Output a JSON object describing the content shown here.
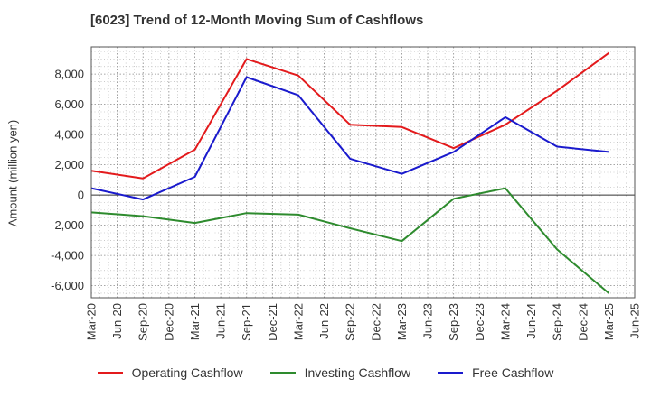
{
  "chart_data": {
    "type": "line",
    "title": "[6023]  Trend of 12-Month Moving Sum of Cashflows",
    "ylabel": "Amount (million yen)",
    "xlabel": "",
    "x_ticks": [
      "Mar-20",
      "Jun-20",
      "Sep-20",
      "Dec-20",
      "Mar-21",
      "Jun-21",
      "Sep-21",
      "Dec-21",
      "Mar-22",
      "Jun-22",
      "Sep-22",
      "Dec-22",
      "Mar-23",
      "Jun-23",
      "Sep-23",
      "Dec-23",
      "Mar-24",
      "Jun-24",
      "Sep-24",
      "Dec-24",
      "Mar-25",
      "Jun-25"
    ],
    "x": [
      "Mar-20",
      "Sep-20",
      "Mar-21",
      "Sep-21",
      "Mar-22",
      "Sep-22",
      "Mar-23",
      "Sep-23",
      "Mar-24",
      "Sep-24",
      "Mar-25"
    ],
    "y_ticks": [
      -6000,
      -4000,
      -2000,
      0,
      2000,
      4000,
      6000,
      8000
    ],
    "y_tick_labels": [
      "-6,000",
      "-4,000",
      "-2,000",
      "0",
      "2,000",
      "4,000",
      "6,000",
      "8,000"
    ],
    "ylim": [
      -6800,
      9800
    ],
    "grid": true,
    "legend_position": "bottom",
    "series": [
      {
        "name": "Operating Cashflow",
        "color": "#e31a1c",
        "values": [
          1600,
          1100,
          3000,
          9000,
          7900,
          4650,
          4500,
          3100,
          4650,
          6900,
          9400
        ]
      },
      {
        "name": "Investing Cashflow",
        "color": "#2e8b2e",
        "values": [
          -1150,
          -1400,
          -1850,
          -1200,
          -1300,
          -2200,
          -3050,
          -250,
          450,
          -3600,
          -6500
        ]
      },
      {
        "name": "Free Cashflow",
        "color": "#1a1acd",
        "values": [
          450,
          -300,
          1200,
          7800,
          6600,
          2400,
          1400,
          2850,
          5150,
          3200,
          2850
        ]
      }
    ]
  }
}
